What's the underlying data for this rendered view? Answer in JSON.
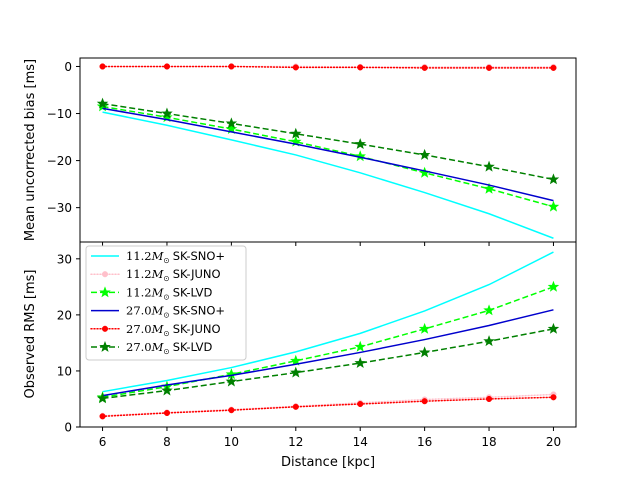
{
  "chart_data": [
    {
      "type": "line",
      "panel": "top",
      "title": "",
      "xlabel": "",
      "ylabel": "Mean uncorrected bias [ms]",
      "x": [
        6,
        8,
        10,
        12,
        14,
        16,
        18,
        20
      ],
      "xlim": [
        5.3,
        20.7
      ],
      "ylim": [
        -37.3,
        1.8
      ],
      "yticks": [
        0,
        -10,
        -20,
        -30
      ],
      "ytick_labels": [
        "0",
        "−10",
        "−20",
        "−30"
      ],
      "series": [
        {
          "name": "11.2 SK-SNO+",
          "color": "#00ffff",
          "dash": "",
          "marker": "none",
          "values": [
            -9.7,
            -12.5,
            -15.6,
            -18.8,
            -22.6,
            -26.8,
            -31.3,
            -36.5
          ]
        },
        {
          "name": "11.2 SK-JUNO",
          "color": "#ffc0cb",
          "dash": "1,2",
          "marker": "circle",
          "values": [
            0.0,
            0.0,
            0.0,
            0.0,
            -0.1,
            -0.1,
            -0.1,
            -0.1
          ]
        },
        {
          "name": "11.2 SK-LVD",
          "color": "#00ff00",
          "dash": "6,3",
          "marker": "star",
          "values": [
            -8.5,
            -10.8,
            -13.3,
            -16.0,
            -19.1,
            -22.6,
            -26.0,
            -29.8
          ]
        },
        {
          "name": "27.0 SK-SNO+",
          "color": "#0000cd",
          "dash": "",
          "marker": "none",
          "values": [
            -8.9,
            -11.3,
            -13.9,
            -16.5,
            -19.3,
            -22.2,
            -25.2,
            -28.5
          ]
        },
        {
          "name": "27.0 SK-JUNO",
          "color": "#ff0000",
          "dash": "1,2",
          "marker": "circle",
          "values": [
            0.0,
            0.0,
            0.0,
            -0.2,
            -0.2,
            -0.3,
            -0.3,
            -0.3
          ]
        },
        {
          "name": "27.0 SK-LVD",
          "color": "#008000",
          "dash": "6,3",
          "marker": "star",
          "values": [
            -7.9,
            -10.0,
            -12.1,
            -14.3,
            -16.5,
            -18.8,
            -21.3,
            -24.0
          ]
        }
      ]
    },
    {
      "type": "line",
      "panel": "bottom",
      "title": "",
      "xlabel": "Distance [kpc]",
      "ylabel": "Observed RMS [ms]",
      "x": [
        6,
        8,
        10,
        12,
        14,
        16,
        18,
        20
      ],
      "xlim": [
        5.3,
        20.7
      ],
      "ylim": [
        0,
        33.0
      ],
      "xticks": [
        6,
        8,
        10,
        12,
        14,
        16,
        18,
        20
      ],
      "xtick_labels": [
        "6",
        "8",
        "10",
        "12",
        "14",
        "16",
        "18",
        "20"
      ],
      "yticks": [
        0,
        10,
        20,
        30
      ],
      "ytick_labels": [
        "0",
        "10",
        "20",
        "30"
      ],
      "legend_position": "upper-left",
      "series": [
        {
          "name": "11.2 SK-SNO+",
          "color": "#00ffff",
          "dash": "",
          "marker": "none",
          "values": [
            6.3,
            8.3,
            10.6,
            13.4,
            16.7,
            20.7,
            25.4,
            31.2
          ]
        },
        {
          "name": "11.2 SK-JUNO",
          "color": "#ffc0cb",
          "dash": "1,2",
          "marker": "circle",
          "values": [
            2.0,
            2.6,
            3.1,
            3.7,
            4.3,
            4.9,
            5.3,
            5.8
          ]
        },
        {
          "name": "11.2 SK-LVD",
          "color": "#00ff00",
          "dash": "6,3",
          "marker": "star",
          "values": [
            5.3,
            7.2,
            9.4,
            11.8,
            14.3,
            17.5,
            20.8,
            25.0
          ]
        },
        {
          "name": "27.0 SK-SNO+",
          "color": "#0000cd",
          "dash": "",
          "marker": "none",
          "values": [
            5.6,
            7.5,
            9.2,
            11.2,
            13.3,
            15.6,
            18.1,
            20.9
          ]
        },
        {
          "name": "27.0 SK-JUNO",
          "color": "#ff0000",
          "dash": "1,2",
          "marker": "circle",
          "values": [
            1.9,
            2.5,
            3.0,
            3.6,
            4.1,
            4.6,
            5.0,
            5.3
          ]
        },
        {
          "name": "27.0 SK-LVD",
          "color": "#008000",
          "dash": "6,3",
          "marker": "star",
          "values": [
            5.1,
            6.5,
            8.1,
            9.7,
            11.4,
            13.3,
            15.3,
            17.5
          ]
        }
      ]
    }
  ],
  "legend": {
    "entries": [
      {
        "mass": "11.2",
        "unit": "M",
        "sub": "⊙",
        "label": "SK-SNO+"
      },
      {
        "mass": "11.2",
        "unit": "M",
        "sub": "⊙",
        "label": "SK-JUNO"
      },
      {
        "mass": "11.2",
        "unit": "M",
        "sub": "⊙",
        "label": "SK-LVD"
      },
      {
        "mass": "27.0",
        "unit": "M",
        "sub": "⊙",
        "label": "SK-SNO+"
      },
      {
        "mass": "27.0",
        "unit": "M",
        "sub": "⊙",
        "label": "SK-JUNO"
      },
      {
        "mass": "27.0",
        "unit": "M",
        "sub": "⊙",
        "label": "SK-LVD"
      }
    ]
  }
}
